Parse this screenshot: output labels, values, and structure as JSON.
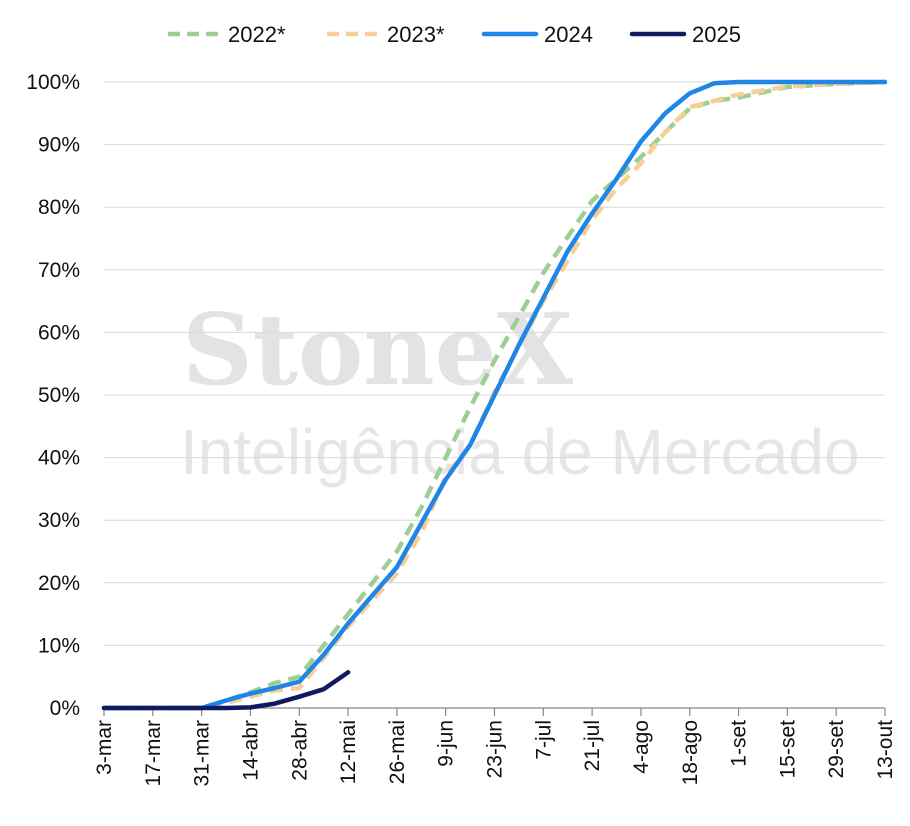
{
  "watermark": {
    "brand": "StoneX",
    "registered": "®",
    "tagline": "Inteligência de Mercado"
  },
  "chart_data": {
    "type": "line",
    "categories": [
      "3-mar",
      "17-mar",
      "31-mar",
      "14-abr",
      "28-abr",
      "12-mai",
      "26-mai",
      "9-jun",
      "23-jun",
      "7-jul",
      "21-jul",
      "4-ago",
      "18-ago",
      "1-set",
      "15-set",
      "29-set",
      "13-out"
    ],
    "ylim": [
      0,
      100
    ],
    "yticks": [
      "0%",
      "10%",
      "20%",
      "30%",
      "40%",
      "50%",
      "60%",
      "70%",
      "80%",
      "90%",
      "100%"
    ],
    "grid": true,
    "legend_position": "top",
    "series": [
      {
        "name": "2022*",
        "color": "#9dcf94",
        "style": "dashed",
        "points": [
          [
            0,
            0
          ],
          [
            1,
            0
          ],
          [
            2,
            0
          ],
          [
            2.5,
            1.2
          ],
          [
            3,
            2.5
          ],
          [
            3.5,
            4
          ],
          [
            4,
            5
          ],
          [
            4.5,
            10
          ],
          [
            5,
            15
          ],
          [
            6,
            25
          ],
          [
            6.5,
            32
          ],
          [
            7,
            40
          ],
          [
            7.5,
            48
          ],
          [
            8,
            55.5
          ],
          [
            9,
            69.5
          ],
          [
            10,
            81
          ],
          [
            10.5,
            84.5
          ],
          [
            11,
            88
          ],
          [
            11.5,
            92
          ],
          [
            12,
            95.8
          ],
          [
            12.5,
            97
          ],
          [
            13,
            97.5
          ],
          [
            14,
            99.2
          ],
          [
            15,
            99.7
          ],
          [
            16,
            100
          ]
        ]
      },
      {
        "name": "2023*",
        "color": "#f7cf95",
        "style": "dashed",
        "points": [
          [
            0,
            0
          ],
          [
            1,
            0
          ],
          [
            2,
            0
          ],
          [
            2.5,
            0.8
          ],
          [
            3,
            1.8
          ],
          [
            3.5,
            2.8
          ],
          [
            4,
            3.2
          ],
          [
            4.5,
            8
          ],
          [
            5,
            13
          ],
          [
            6,
            21.5
          ],
          [
            6.5,
            28
          ],
          [
            7,
            37
          ],
          [
            7.5,
            42
          ],
          [
            8,
            50.5
          ],
          [
            9,
            65
          ],
          [
            10,
            78
          ],
          [
            10.5,
            83
          ],
          [
            11,
            87
          ],
          [
            11.5,
            92
          ],
          [
            12,
            96
          ],
          [
            12.5,
            97
          ],
          [
            13,
            98
          ],
          [
            14,
            99.3
          ],
          [
            15,
            99.7
          ],
          [
            16,
            100
          ]
        ]
      },
      {
        "name": "2024",
        "color": "#1f86e8",
        "style": "solid",
        "points": [
          [
            0,
            0
          ],
          [
            1,
            0
          ],
          [
            2,
            0
          ],
          [
            2.5,
            1.2
          ],
          [
            3,
            2.3
          ],
          [
            3.5,
            3.2
          ],
          [
            4,
            4.2
          ],
          [
            4.5,
            8.5
          ],
          [
            5,
            13.5
          ],
          [
            6,
            22.5
          ],
          [
            6.5,
            29.5
          ],
          [
            7,
            36.5
          ],
          [
            7.5,
            42
          ],
          [
            8,
            50
          ],
          [
            8.5,
            58
          ],
          [
            9,
            65.5
          ],
          [
            9.5,
            73
          ],
          [
            10,
            79
          ],
          [
            10.5,
            84.5
          ],
          [
            11,
            90.5
          ],
          [
            11.5,
            95
          ],
          [
            12,
            98.2
          ],
          [
            12.5,
            99.8
          ],
          [
            13,
            100
          ],
          [
            14,
            100
          ],
          [
            15,
            100
          ],
          [
            16,
            100
          ]
        ]
      },
      {
        "name": "2025",
        "color": "#101a5e",
        "style": "solid",
        "points": [
          [
            0,
            0
          ],
          [
            1,
            0
          ],
          [
            2,
            0
          ],
          [
            2.5,
            0
          ],
          [
            3,
            0.1
          ],
          [
            3.5,
            0.7
          ],
          [
            4,
            1.8
          ],
          [
            4.5,
            3
          ],
          [
            5,
            5.7
          ]
        ]
      }
    ]
  }
}
